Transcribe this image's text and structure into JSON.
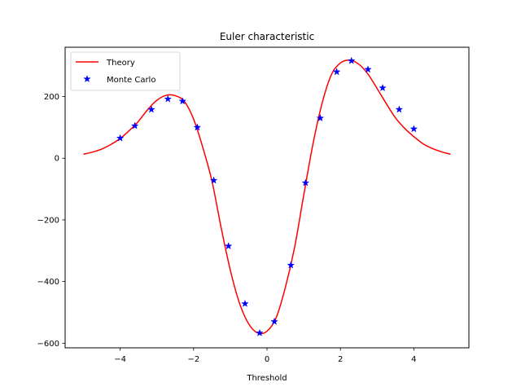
{
  "chart_data": {
    "type": "line",
    "title": "Euler characteristic",
    "xlabel": "Threshold",
    "ylabel": "",
    "xlim": [
      -5.5,
      5.5
    ],
    "ylim": [
      -615,
      360
    ],
    "xticks": [
      -4,
      -2,
      0,
      2,
      4
    ],
    "xtick_labels": [
      "−4",
      "−2",
      "0",
      "2",
      "4"
    ],
    "yticks": [
      -600,
      -400,
      -200,
      0,
      200
    ],
    "ytick_labels": [
      "−600",
      "−400",
      "−200",
      "0",
      "200"
    ],
    "grid": false,
    "legend_position": "top-left",
    "series": [
      {
        "name": "Theory",
        "style": "line",
        "color": "#ff0000",
        "x": [
          -5.0,
          -4.75,
          -4.5,
          -4.25,
          -4.0,
          -3.75,
          -3.5,
          -3.25,
          -3.0,
          -2.75,
          -2.5,
          -2.25,
          -2.0,
          -1.75,
          -1.5,
          -1.25,
          -1.0,
          -0.75,
          -0.5,
          -0.25,
          0.0,
          0.25,
          0.5,
          0.75,
          1.0,
          1.25,
          1.5,
          1.75,
          2.0,
          2.25,
          2.5,
          2.75,
          3.0,
          3.25,
          3.5,
          3.75,
          4.0,
          4.25,
          4.5,
          4.75,
          5.0
        ],
        "y": [
          13,
          20,
          30,
          45,
          64,
          90,
          120,
          158,
          188,
          204,
          203,
          184,
          127,
          35,
          -74,
          -225,
          -363,
          -470,
          -537,
          -567,
          -561,
          -517,
          -419,
          -290,
          -120,
          45,
          178,
          270,
          309,
          318,
          305,
          273,
          226,
          177,
          131,
          97,
          70,
          47,
          32,
          21,
          13
        ]
      },
      {
        "name": "Monte Carlo",
        "style": "marker",
        "marker": "star",
        "color": "#0000ff",
        "x": [
          -4.0,
          -3.6,
          -3.15,
          -2.7,
          -2.3,
          -1.9,
          -1.45,
          -1.05,
          -0.6,
          -0.2,
          0.2,
          0.65,
          1.05,
          1.45,
          1.9,
          2.3,
          2.75,
          3.15,
          3.6,
          4.0
        ],
        "y": [
          65,
          105,
          158,
          192,
          185,
          100,
          -72,
          -285,
          -472,
          -567,
          -530,
          -347,
          -80,
          130,
          280,
          316,
          288,
          228,
          158,
          95
        ]
      }
    ]
  }
}
